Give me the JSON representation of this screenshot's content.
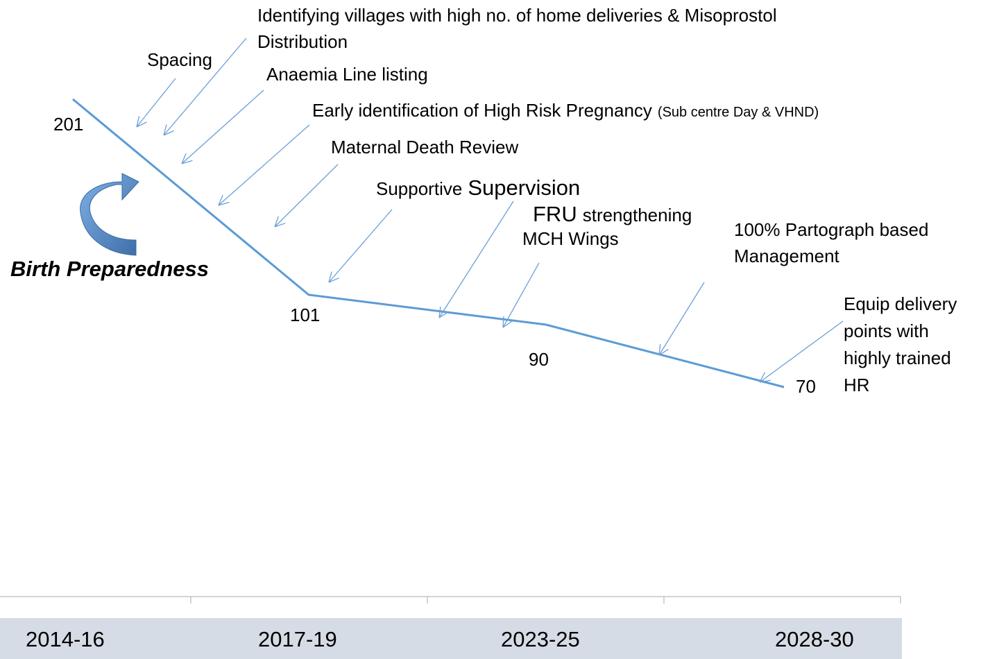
{
  "points": [
    "201",
    "101",
    "90",
    "70"
  ],
  "periods": [
    "2014-16",
    "2017-19",
    "2023-25",
    "2028-30"
  ],
  "side_label": "Birth Preparedness",
  "annotations": [
    [
      "Spacing"
    ],
    [
      "Identifying villages with high no. of home deliveries & Misoprostol",
      "Distribution"
    ],
    [
      "Anaemia Line listing"
    ],
    [
      "Early identification of High Risk Pregnancy",
      "(Sub centre Day & VHND)"
    ],
    [
      "Maternal Death Review"
    ],
    [
      "Supportive",
      "Supervision"
    ],
    [
      "FRU",
      "strengthening"
    ],
    [
      "MCH Wings"
    ],
    [
      "100% Partograph based",
      "Management"
    ],
    [
      "Equip delivery",
      "points with",
      "highly trained",
      "HR"
    ]
  ]
}
